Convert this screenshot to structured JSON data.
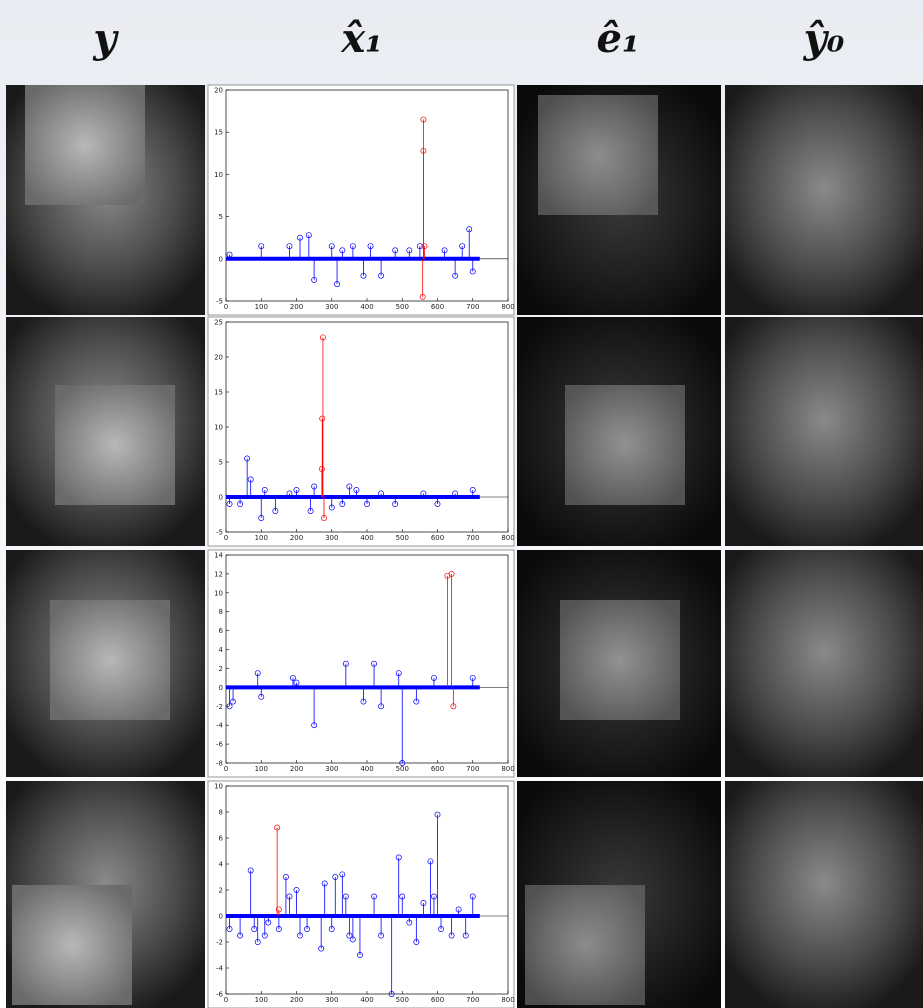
{
  "column_headers": [
    "y",
    "x̂₁",
    "ê₁",
    "ŷ₀"
  ],
  "chart_data": [
    {
      "type": "stem",
      "xlim": [
        0,
        800
      ],
      "xticks": [
        0,
        100,
        200,
        300,
        400,
        500,
        600,
        700,
        800
      ],
      "ylim": [
        -5,
        20
      ],
      "yticks": [
        -5,
        0,
        5,
        10,
        15,
        20
      ],
      "series": [
        {
          "color": "#0000ff",
          "x": [
            10,
            100,
            180,
            210,
            235,
            250,
            300,
            315,
            330,
            360,
            390,
            410,
            440,
            480,
            520,
            550,
            620,
            650,
            670,
            690,
            700
          ],
          "values": [
            0.5,
            1.5,
            1.5,
            2.5,
            2.8,
            -2.5,
            1.5,
            -3,
            1,
            1.5,
            -2,
            1.5,
            -2,
            1,
            1,
            1.5,
            1,
            -2,
            1.5,
            3.5,
            -1.5
          ]
        },
        {
          "color": "#ff0000",
          "x": [
            560,
            560,
            563,
            558
          ],
          "values": [
            16.5,
            12.8,
            1.5,
            -4.5
          ]
        }
      ]
    },
    {
      "type": "stem",
      "xlim": [
        0,
        800
      ],
      "xticks": [
        0,
        100,
        200,
        300,
        400,
        500,
        600,
        700,
        800
      ],
      "ylim": [
        -5,
        25
      ],
      "yticks": [
        -5,
        0,
        5,
        10,
        15,
        20,
        25
      ],
      "series": [
        {
          "color": "#0000ff",
          "x": [
            10,
            40,
            60,
            70,
            100,
            110,
            140,
            180,
            200,
            240,
            250,
            300,
            330,
            350,
            370,
            400,
            440,
            480,
            560,
            600,
            650,
            700
          ],
          "values": [
            -1,
            -1,
            5.5,
            2.5,
            -3,
            1,
            -2,
            0.5,
            1,
            -2,
            1.5,
            -1.5,
            -1,
            1.5,
            1,
            -1,
            0.5,
            -1,
            0.5,
            -1,
            0.5,
            1
          ]
        },
        {
          "color": "#ff0000",
          "x": [
            275,
            273,
            272,
            278
          ],
          "values": [
            22.8,
            11.2,
            4,
            -3
          ]
        }
      ]
    },
    {
      "type": "stem",
      "xlim": [
        0,
        800
      ],
      "xticks": [
        0,
        100,
        200,
        300,
        400,
        500,
        600,
        700,
        800
      ],
      "ylim": [
        -8,
        14
      ],
      "yticks": [
        -8,
        -6,
        -4,
        -2,
        0,
        2,
        4,
        6,
        8,
        10,
        12,
        14
      ],
      "series": [
        {
          "color": "#0000ff",
          "x": [
            10,
            20,
            90,
            100,
            190,
            200,
            250,
            340,
            390,
            420,
            440,
            490,
            500,
            540,
            590,
            700
          ],
          "values": [
            -2,
            -1.5,
            1.5,
            -1,
            1,
            0.5,
            -4,
            2.5,
            -1.5,
            2.5,
            -2,
            1.5,
            -8,
            -1.5,
            1,
            1
          ]
        },
        {
          "color": "#ff0000",
          "x": [
            628,
            640,
            645
          ],
          "values": [
            11.8,
            12,
            -2
          ]
        }
      ]
    },
    {
      "type": "stem",
      "xlim": [
        0,
        800
      ],
      "xticks": [
        0,
        100,
        200,
        300,
        400,
        500,
        600,
        700,
        800
      ],
      "ylim": [
        -6,
        10
      ],
      "yticks": [
        -6,
        -4,
        -2,
        0,
        2,
        4,
        6,
        8,
        10
      ],
      "series": [
        {
          "color": "#0000ff",
          "x": [
            10,
            40,
            70,
            80,
            90,
            110,
            120,
            150,
            170,
            180,
            200,
            210,
            230,
            270,
            280,
            300,
            310,
            330,
            340,
            350,
            360,
            380,
            420,
            440,
            470,
            490,
            500,
            520,
            540,
            560,
            580,
            590,
            600,
            610,
            640,
            660,
            680,
            700
          ],
          "values": [
            -1,
            -1.5,
            3.5,
            -1,
            -2,
            -1.5,
            -0.5,
            -1,
            3,
            1.5,
            2,
            -1.5,
            -1,
            -2.5,
            2.5,
            -1,
            3,
            3.2,
            1.5,
            -1.5,
            -1.8,
            -3,
            1.5,
            -1.5,
            -6,
            4.5,
            1.5,
            -0.5,
            -2,
            1,
            4.2,
            1.5,
            7.8,
            -1,
            -1.5,
            0.5,
            -1.5,
            1.5
          ]
        },
        {
          "color": "#ff0000",
          "x": [
            145,
            150
          ],
          "values": [
            6.8,
            0.5
          ]
        }
      ]
    }
  ]
}
